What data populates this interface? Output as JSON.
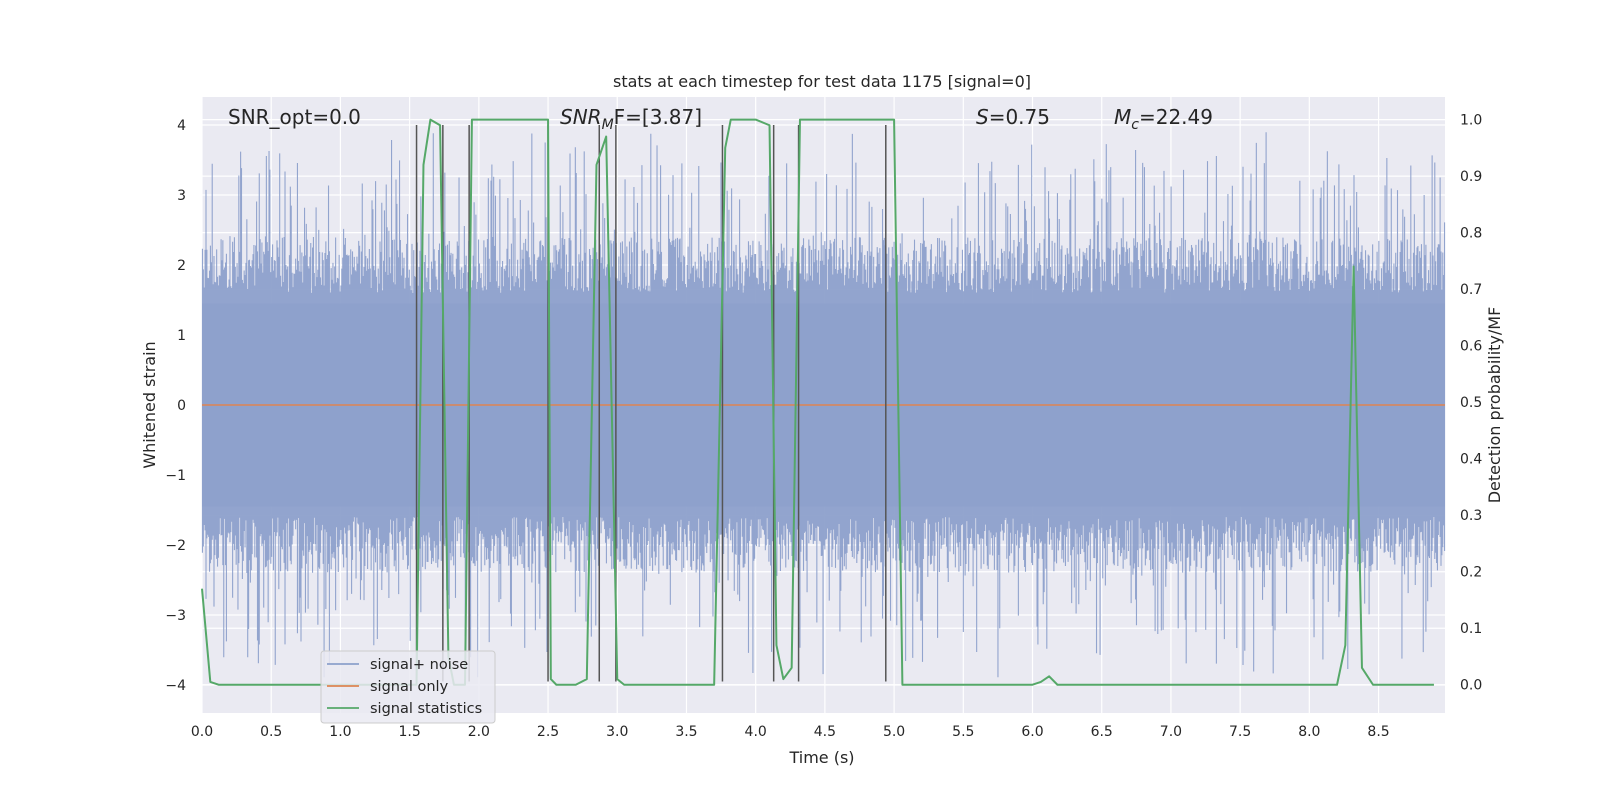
{
  "chart_data": {
    "type": "line",
    "title": "stats at each timestep for test data 1175 [signal=0]",
    "xlabel": "Time (s)",
    "ylabel_left": "Whitened strain",
    "ylabel_right": "Detection probability/MF",
    "xlim": [
      0.0,
      8.98
    ],
    "ylim_left": [
      -4.4,
      4.4
    ],
    "ylim_right": [
      -0.05,
      1.04
    ],
    "x_ticks": [
      "0.0",
      "0.5",
      "1.0",
      "1.5",
      "2.0",
      "2.5",
      "3.0",
      "3.5",
      "4.0",
      "4.5",
      "5.0",
      "5.5",
      "6.0",
      "6.5",
      "7.0",
      "7.5",
      "8.0",
      "8.5"
    ],
    "y_ticks_left": [
      "4",
      "3",
      "2",
      "1",
      "0",
      "−1",
      "−2",
      "−3",
      "−4"
    ],
    "y_ticks_right": [
      "1.0",
      "0.9",
      "0.8",
      "0.7",
      "0.6",
      "0.5",
      "0.4",
      "0.3",
      "0.2",
      "0.1",
      "0.0"
    ],
    "grid": true,
    "legend_position": "lower-left",
    "annotations": {
      "snr_opt": "SNR_opt=0.0",
      "snr_mf_main": "SNR",
      "snr_mf_sub": "M",
      "snr_mf_tail": "F=[3.87]",
      "s_var": "S",
      "s_val": "=0.75",
      "mc_main": "M",
      "mc_sub": "c",
      "mc_val": "=22.49"
    },
    "series": [
      {
        "name": "signal+ noise",
        "color": "#8da0cb",
        "description": "whitened strain noise, approx. uniform amplitude within ±2 with peaks to ±3.9"
      },
      {
        "name": "signal only",
        "color": "#dd8452",
        "values_constant": 0.0
      },
      {
        "name": "signal statistics",
        "color": "#55a868",
        "x": [
          0.0,
          0.06,
          0.12,
          0.5,
          1.0,
          1.4,
          1.55,
          1.6,
          1.65,
          1.72,
          1.78,
          1.82,
          1.85,
          1.9,
          1.95,
          2.0,
          2.5,
          2.52,
          2.56,
          2.62,
          2.7,
          2.78,
          2.85,
          2.92,
          3.0,
          3.05,
          3.12,
          3.2,
          3.6,
          3.7,
          3.78,
          3.82,
          3.88,
          4.0,
          4.1,
          4.15,
          4.2,
          4.26,
          4.32,
          4.38,
          4.4,
          5.0,
          5.06,
          5.12,
          5.5,
          6.0,
          6.06,
          6.12,
          6.18,
          6.3,
          7.0,
          8.0,
          8.2,
          8.26,
          8.32,
          8.38,
          8.46,
          8.9
        ],
        "y": [
          0.17,
          0.005,
          0.0,
          0.0,
          0.0,
          0.0,
          0.0,
          0.92,
          1.0,
          0.99,
          0.05,
          0.0,
          0.0,
          0.0,
          1.0,
          1.0,
          1.0,
          0.01,
          0.0,
          0.0,
          0.0,
          0.01,
          0.92,
          0.97,
          0.01,
          0.0,
          0.0,
          0.0,
          0.0,
          0.0,
          0.95,
          1.0,
          1.0,
          1.0,
          0.99,
          0.07,
          0.01,
          0.03,
          1.0,
          1.0,
          1.0,
          1.0,
          0.0,
          0.0,
          0.0,
          0.0,
          0.005,
          0.015,
          0.0,
          0.0,
          0.0,
          0.0,
          0.0,
          0.07,
          0.74,
          0.03,
          0.0,
          0.0
        ]
      }
    ],
    "vertical_lines_x": [
      1.55,
      1.74,
      1.93,
      2.5,
      2.87,
      2.99,
      3.76,
      4.13,
      4.31,
      4.94
    ]
  }
}
